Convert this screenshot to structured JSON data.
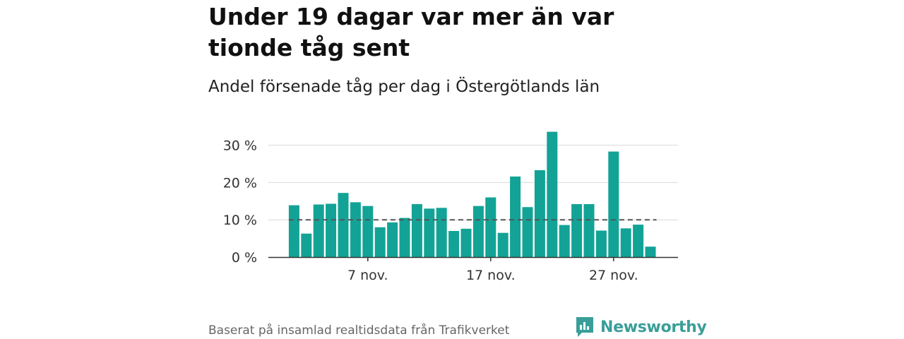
{
  "title": "Under 19 dagar var mer än var tionde tåg sent",
  "subtitle": "Andel försenade tåg per dag i Östergötlands län",
  "source": "Baserat på insamlad realtidsdata från Trafikverket",
  "brand": {
    "name": "Newsworthy",
    "color": "#3a9e98"
  },
  "colors": {
    "bar": "#12a396",
    "reference_line": "#555555",
    "grid": "#d9d9d9"
  },
  "chart_data": {
    "type": "bar",
    "x": [
      1,
      2,
      3,
      4,
      5,
      6,
      7,
      8,
      9,
      10,
      11,
      12,
      13,
      14,
      15,
      16,
      17,
      18,
      19,
      20,
      21,
      22,
      23,
      24,
      25,
      26,
      27,
      28,
      29,
      30
    ],
    "values": [
      13.9,
      6.3,
      14.1,
      14.3,
      17.2,
      14.7,
      13.7,
      8.0,
      9.3,
      10.5,
      14.2,
      13.0,
      13.2,
      7.0,
      7.6,
      13.7,
      16.0,
      6.5,
      21.6,
      13.4,
      23.3,
      33.6,
      8.6,
      14.2,
      14.2,
      7.1,
      28.3,
      7.7,
      8.7,
      2.8
    ],
    "unit": "%",
    "reference_value": 10,
    "ylim": [
      0,
      34
    ],
    "yticks": [
      0,
      10,
      20,
      30
    ],
    "ytick_labels": [
      "0 %",
      "10 %",
      "20 %",
      "30 %"
    ],
    "xticks": [
      7,
      17,
      27
    ],
    "xtick_labels": [
      "7 nov.",
      "17 nov.",
      "27 nov."
    ],
    "grid": true,
    "legend": "none"
  }
}
